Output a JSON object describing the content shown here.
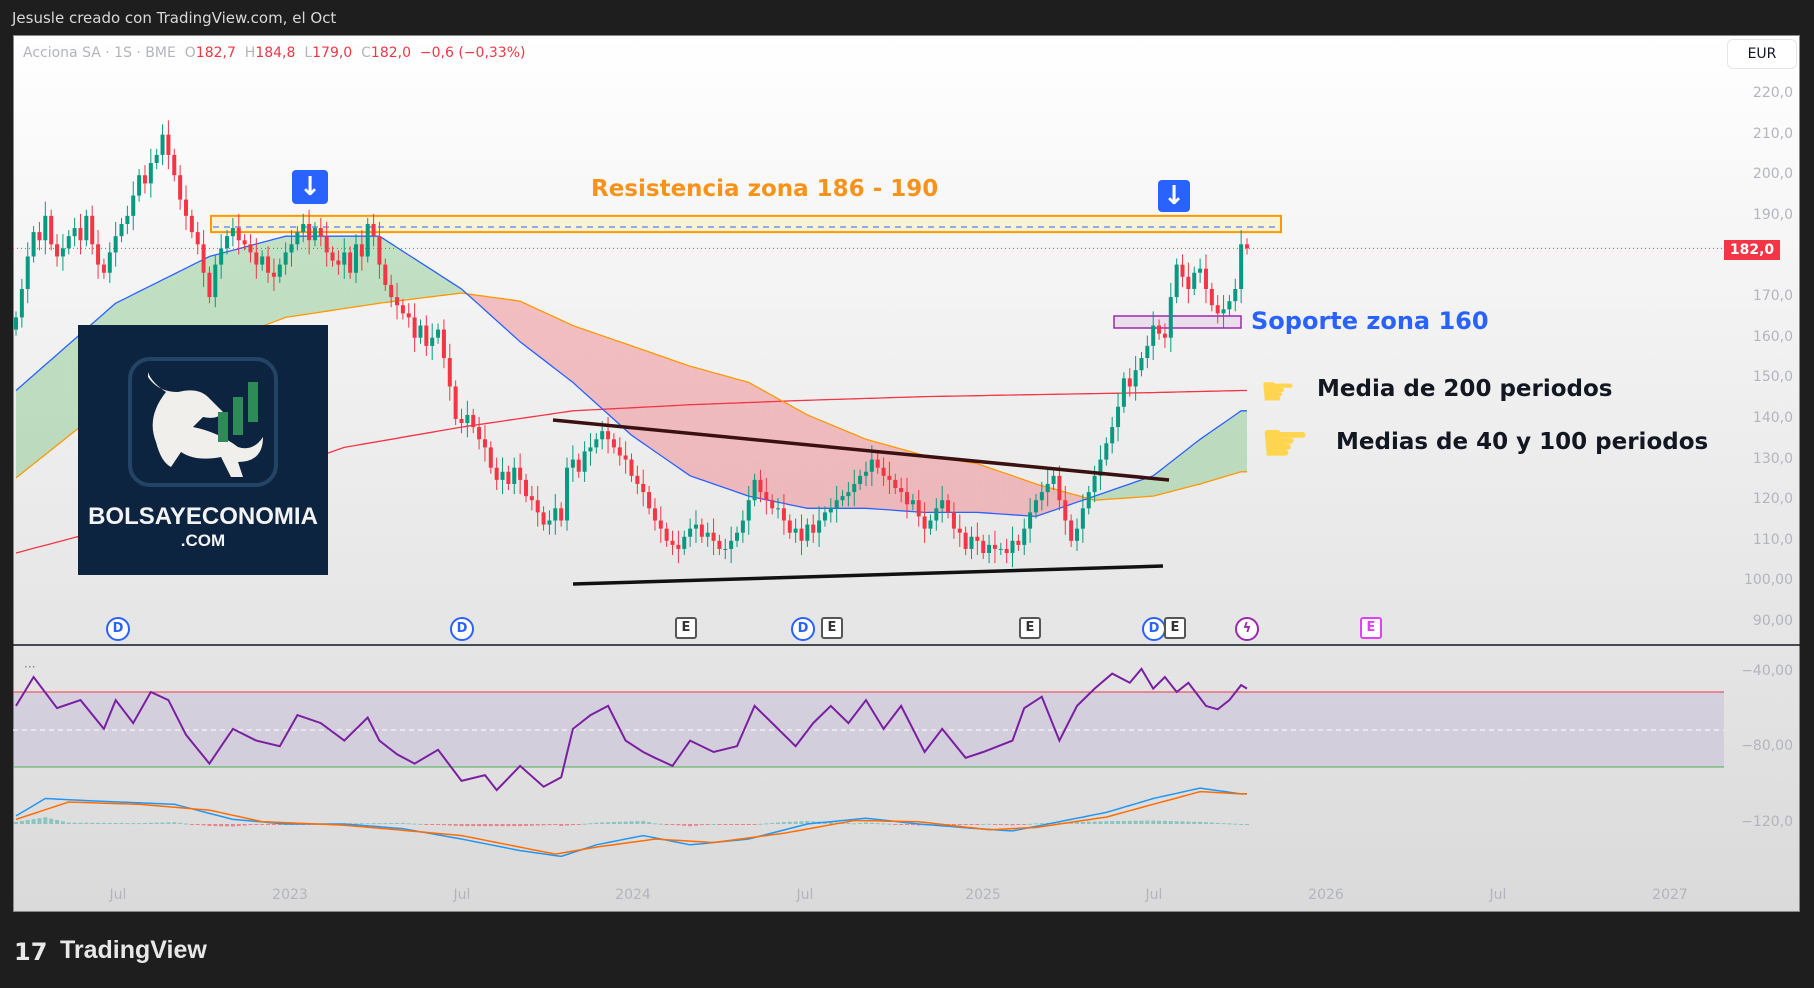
{
  "caption": "Jesusle creado con TradingView.com, el Oct",
  "legend": {
    "symbol": "Acciona SA · 1S · BME",
    "o_label": "O",
    "o": "182,7",
    "h_label": "H",
    "h": "184,8",
    "l_label": "L",
    "l": "179,0",
    "c_label": "C",
    "c": "182,0",
    "change": "−0,6 (−0,33%)"
  },
  "currency_button": "EUR",
  "last_price_tag": "182,0",
  "colors": {
    "up": "#089981",
    "down": "#f23645",
    "ma40": "#2962ff",
    "ma100": "#ff9800",
    "ma200": "#f23645",
    "rsi": "#7b1fa2",
    "resistance": "#ff9800",
    "support": "#9c27b0"
  },
  "annotations": {
    "resistance": "Resistencia zona 186 - 190",
    "support": "Soporte zona 160",
    "ma200": "Media de 200 periodos",
    "ma40_100": "Medias de 40 y 100 periodos",
    "hand_icon": "☛",
    "arrow_icon": "🡇"
  },
  "logo": {
    "line1": "BOLSAYECONOMIA",
    "line2": ".COM"
  },
  "branding": "TradingView",
  "events": {
    "dividend": "D",
    "earnings": "E"
  },
  "chart_data": {
    "type": "candlestick",
    "price_axis": {
      "ticks": [
        "220,0",
        "210,0",
        "200,0",
        "190,0",
        "170,0",
        "160,0",
        "150,0",
        "140,0",
        "130,0",
        "120,0",
        "110,0",
        "100,00",
        "90,00"
      ],
      "values": [
        220,
        210,
        200,
        190,
        170,
        160,
        150,
        140,
        130,
        120,
        110,
        100,
        90
      ]
    },
    "lower_axis": [
      "−40,00",
      "−80,00",
      "−120,0"
    ],
    "time_axis": [
      "Jul",
      "2023",
      "Jul",
      "2024",
      "Jul",
      "2025",
      "Jul",
      "2026",
      "Jul",
      "2027"
    ],
    "last_price": 182.0,
    "resistance_zone": [
      186,
      190
    ],
    "support_zone": [
      160,
      163
    ],
    "closes": [
      165,
      172,
      180,
      186,
      184,
      190,
      183,
      180,
      182,
      185,
      187,
      184,
      190,
      183,
      178,
      176,
      181,
      185,
      188,
      190,
      195,
      200,
      198,
      203,
      205,
      210,
      205,
      200,
      194,
      190,
      186,
      183,
      176,
      170,
      178,
      182,
      185,
      187,
      184,
      183,
      181,
      178,
      180,
      176,
      175,
      178,
      181,
      183,
      186,
      188,
      184,
      187,
      185,
      181,
      179,
      178,
      181,
      176,
      183,
      180,
      188,
      185,
      178,
      173,
      170,
      168,
      166,
      165,
      160,
      163,
      158,
      160,
      162,
      155,
      148,
      140,
      139,
      141,
      138,
      135,
      133,
      128,
      125,
      127,
      124,
      128,
      125,
      121,
      120,
      117,
      114,
      115,
      118,
      115,
      128,
      130,
      127,
      132,
      133,
      135,
      137,
      135,
      133,
      131,
      130,
      126,
      124,
      122,
      118,
      115,
      113,
      110,
      109,
      108,
      111,
      113,
      114,
      111,
      112,
      110,
      108,
      108,
      110,
      112,
      115,
      120,
      125,
      122,
      120,
      118,
      118,
      115,
      112,
      113,
      110,
      114,
      112,
      115,
      117,
      118,
      120,
      121,
      122,
      124,
      126,
      127,
      130,
      128,
      126,
      125,
      123,
      122,
      119,
      120,
      116,
      113,
      115,
      118,
      120,
      117,
      113,
      112,
      108,
      111,
      110,
      107,
      109,
      108,
      108,
      107,
      110,
      109,
      113,
      117,
      120,
      122,
      124,
      126,
      120,
      115,
      110,
      113,
      118,
      122,
      126,
      130,
      134,
      138,
      143,
      150,
      148,
      152,
      155,
      158,
      163,
      161,
      160,
      170,
      178,
      175,
      172,
      176,
      177,
      172,
      168,
      166,
      167,
      169,
      172,
      183,
      182
    ],
    "ma40": [
      [
        0,
        147
      ],
      [
        17,
        168.5
      ],
      [
        33,
        180
      ],
      [
        46,
        185
      ],
      [
        62,
        185
      ],
      [
        76,
        172
      ],
      [
        86,
        159
      ],
      [
        95,
        149
      ],
      [
        105,
        136
      ],
      [
        115,
        126
      ],
      [
        125,
        121
      ],
      [
        135,
        118
      ],
      [
        145,
        118
      ],
      [
        155,
        117
      ],
      [
        164,
        117
      ],
      [
        174,
        116
      ],
      [
        184,
        121
      ],
      [
        194,
        126
      ],
      [
        202,
        135
      ],
      [
        209,
        142
      ]
    ],
    "ma100": [
      [
        0,
        125.5
      ],
      [
        17,
        145
      ],
      [
        33,
        158
      ],
      [
        46,
        165
      ],
      [
        62,
        168.5
      ],
      [
        76,
        171
      ],
      [
        86,
        169
      ],
      [
        95,
        163
      ],
      [
        105,
        158
      ],
      [
        115,
        153
      ],
      [
        125,
        149
      ],
      [
        135,
        141
      ],
      [
        145,
        135
      ],
      [
        155,
        131
      ],
      [
        164,
        129
      ],
      [
        174,
        124
      ],
      [
        184,
        120
      ],
      [
        194,
        121
      ],
      [
        202,
        124
      ],
      [
        209,
        127
      ]
    ],
    "ma200": [
      [
        0,
        107
      ],
      [
        17,
        113.5
      ],
      [
        37,
        123.5
      ],
      [
        56,
        133
      ],
      [
        76,
        138
      ],
      [
        95,
        142
      ],
      [
        115,
        143.5
      ],
      [
        135,
        144.6
      ],
      [
        155,
        145.5
      ],
      [
        174,
        146
      ],
      [
        194,
        146.5
      ],
      [
        209,
        147
      ]
    ],
    "rsi": {
      "upper": 70,
      "lower": 30,
      "points": [
        [
          0,
          62.6
        ],
        [
          3,
          78
        ],
        [
          7,
          61.4
        ],
        [
          11,
          65.7
        ],
        [
          15,
          50.3
        ],
        [
          17,
          65.7
        ],
        [
          20,
          53.4
        ],
        [
          23,
          70
        ],
        [
          26,
          65.7
        ],
        [
          29,
          47.2
        ],
        [
          33,
          31.8
        ],
        [
          37,
          50.3
        ],
        [
          41,
          44.1
        ],
        [
          45,
          41.1
        ],
        [
          48,
          57.7
        ],
        [
          52,
          53.4
        ],
        [
          56,
          44.1
        ],
        [
          60,
          56.4
        ],
        [
          62,
          44.1
        ],
        [
          65,
          36.8
        ],
        [
          68,
          31.8
        ],
        [
          72,
          39.2
        ],
        [
          76,
          22.6
        ],
        [
          80,
          25.7
        ],
        [
          82,
          17.7
        ],
        [
          86,
          30.6
        ],
        [
          90,
          19.5
        ],
        [
          93,
          24.5
        ],
        [
          95,
          50.3
        ],
        [
          98,
          57.7
        ],
        [
          101,
          62.6
        ],
        [
          104,
          44.1
        ],
        [
          107,
          38
        ],
        [
          109,
          34.9
        ],
        [
          112,
          30.6
        ],
        [
          115,
          44.1
        ],
        [
          119,
          38
        ],
        [
          123,
          41.1
        ],
        [
          126,
          62.6
        ],
        [
          129,
          53.4
        ],
        [
          133,
          41.1
        ],
        [
          136,
          53.4
        ],
        [
          139,
          62.6
        ],
        [
          142,
          53.4
        ],
        [
          145,
          65.7
        ],
        [
          148,
          50.3
        ],
        [
          151,
          62.6
        ],
        [
          155,
          38
        ],
        [
          158,
          50.3
        ],
        [
          162,
          34.9
        ],
        [
          165,
          38
        ],
        [
          170,
          44.1
        ],
        [
          172,
          61.4
        ],
        [
          175,
          67.5
        ],
        [
          178,
          44.1
        ],
        [
          181,
          62.6
        ],
        [
          184,
          71.8
        ],
        [
          187,
          79.8
        ],
        [
          190,
          74.9
        ],
        [
          192,
          82.3
        ],
        [
          194,
          71.8
        ],
        [
          196,
          78
        ],
        [
          198,
          70
        ],
        [
          200,
          74.9
        ],
        [
          203,
          62.6
        ],
        [
          205,
          60.8
        ],
        [
          207,
          65.7
        ],
        [
          209,
          73.7
        ],
        [
          210,
          71.8
        ]
      ]
    },
    "macd": [
      [
        0,
        7
      ],
      [
        5,
        22
      ],
      [
        13,
        20
      ],
      [
        27,
        17
      ],
      [
        37,
        4
      ],
      [
        46,
        0
      ],
      [
        56,
        0
      ],
      [
        66,
        -4
      ],
      [
        76,
        -13
      ],
      [
        86,
        -23
      ],
      [
        93,
        -28
      ],
      [
        99,
        -18
      ],
      [
        107,
        -10
      ],
      [
        115,
        -18
      ],
      [
        125,
        -13
      ],
      [
        135,
        0
      ],
      [
        145,
        5
      ],
      [
        154,
        0
      ],
      [
        164,
        -4
      ],
      [
        170,
        -6
      ],
      [
        178,
        2
      ],
      [
        186,
        10
      ],
      [
        194,
        22
      ],
      [
        202,
        31
      ],
      [
        209,
        26
      ]
    ],
    "signal": [
      [
        0,
        4
      ],
      [
        9,
        19
      ],
      [
        21,
        17
      ],
      [
        33,
        12
      ],
      [
        42,
        2
      ],
      [
        56,
        -1
      ],
      [
        76,
        -10
      ],
      [
        92,
        -26
      ],
      [
        99,
        -20
      ],
      [
        109,
        -13
      ],
      [
        119,
        -16
      ],
      [
        131,
        -8
      ],
      [
        143,
        3
      ],
      [
        154,
        2
      ],
      [
        166,
        -5
      ],
      [
        174,
        -3
      ],
      [
        186,
        6
      ],
      [
        194,
        17
      ],
      [
        202,
        28
      ],
      [
        209,
        26
      ]
    ]
  }
}
